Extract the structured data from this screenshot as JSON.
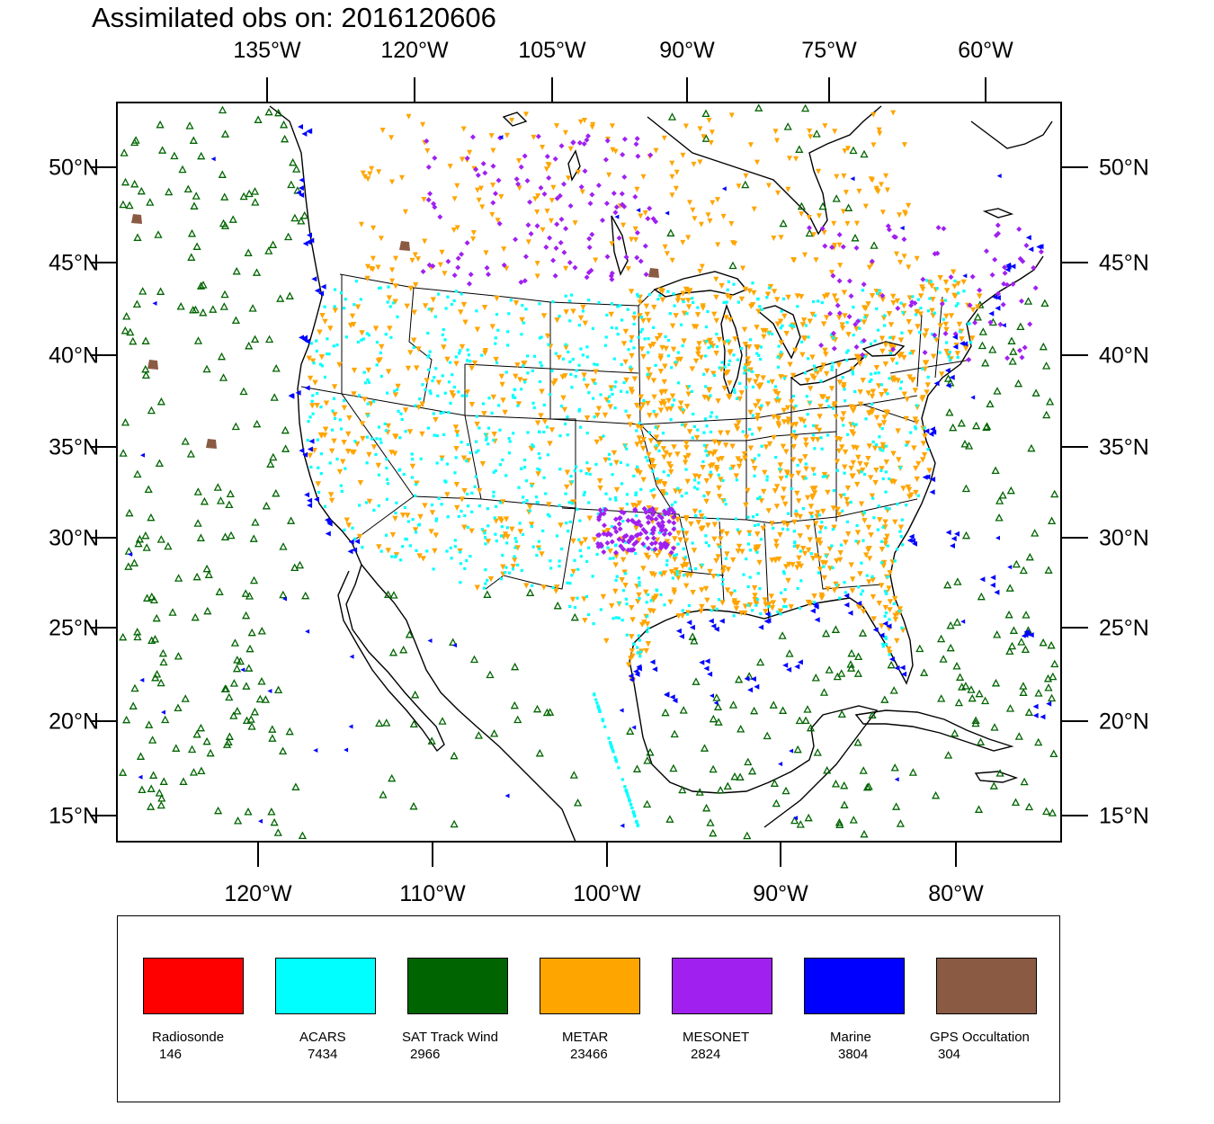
{
  "title": "Assimilated obs on: 2016120606",
  "top_axis_labels": [
    "135°W",
    "120°W",
    "105°W",
    "90°W",
    "75°W",
    "60°W"
  ],
  "bottom_axis_labels": [
    "120°W",
    "110°W",
    "100°W",
    "90°W",
    "80°W"
  ],
  "left_axis_labels": [
    "50°N",
    "45°N",
    "40°N",
    "35°N",
    "30°N",
    "25°N",
    "20°N",
    "15°N"
  ],
  "right_axis_labels": [
    "50°N",
    "45°N",
    "40°N",
    "35°N",
    "30°N",
    "25°N",
    "20°N",
    "15°N"
  ],
  "legend": [
    {
      "label": "Radiosonde",
      "count": "146",
      "color": "#ff0000"
    },
    {
      "label": "ACARS",
      "count": "7434",
      "color": "#00ffff"
    },
    {
      "label": "SAT Track Wind",
      "count": "2966",
      "color": "#006400"
    },
    {
      "label": "METAR",
      "count": "23466",
      "color": "#ffa500"
    },
    {
      "label": "MESONET",
      "count": "2824",
      "color": "#a020f0"
    },
    {
      "label": "Marine",
      "count": "3804",
      "color": "#0000ff"
    },
    {
      "label": "GPS Occultation",
      "count": "304",
      "color": "#8b5a43"
    }
  ],
  "map": {
    "lon_range": [
      -128,
      -74
    ],
    "lat_range": [
      14,
      53
    ],
    "line_color": "#000000"
  }
}
